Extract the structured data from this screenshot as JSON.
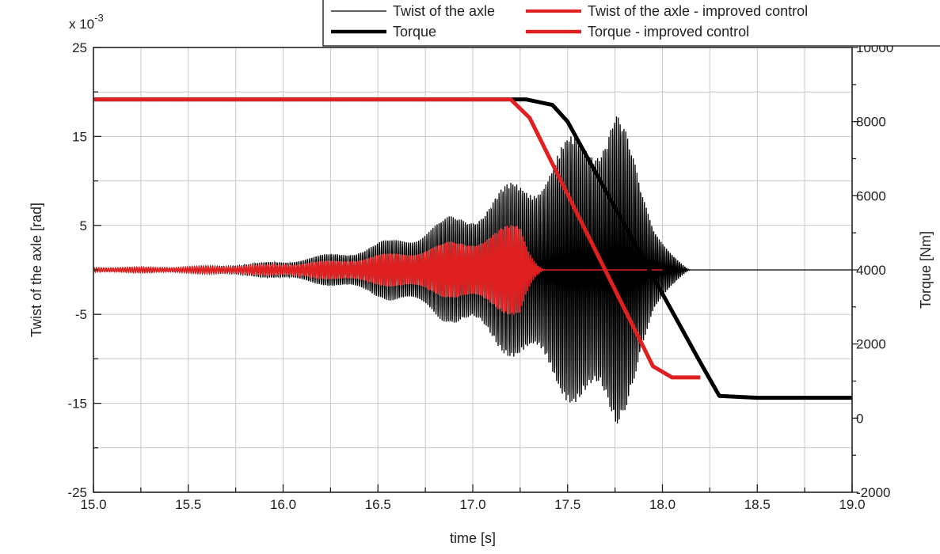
{
  "chart_data": {
    "type": "line",
    "xlabel": "time [s]",
    "ylabel_left": "Twist of the axle [rad]",
    "ylabel_right": "Torque [Nm]",
    "left_axis_multiplier": "x 10",
    "left_axis_exponent": "-3",
    "xlim": [
      15.0,
      19.0
    ],
    "ylim_left": [
      -25,
      25
    ],
    "ylim_right": [
      -2000,
      10000
    ],
    "x_ticks": [
      "15.0",
      "15.5",
      "16.0",
      "16.5",
      "17.0",
      "17.5",
      "18.0",
      "18.5",
      "19.0"
    ],
    "y_left_ticks": [
      "25",
      "15",
      "5",
      "-5",
      "-15",
      "-25"
    ],
    "y_right_ticks": [
      "10000",
      "8000",
      "6000",
      "4000",
      "2000",
      "0",
      "-2000"
    ],
    "grid": true,
    "legend_position": "top-right",
    "series": [
      {
        "name": "Twist of the axle",
        "axis": "left",
        "color": "#000000",
        "style": "thin-oscillating",
        "osc_start": 15.0,
        "osc_peak": 17.75,
        "osc_end": 18.15,
        "peak_amplitude": 20,
        "settle_value": 0,
        "values_described": "oscillation around 0 growing from ~0.3 at 15.0 s to ~20 near 17.75 s, decaying to 0 by ~18.15 s"
      },
      {
        "name": "Twist of the axle - improved control",
        "axis": "left",
        "color": "#e02020",
        "style": "thin-oscillating",
        "osc_start": 15.0,
        "osc_peak": 17.25,
        "osc_end": 17.38,
        "peak_amplitude": 5.5,
        "settle_value": 0,
        "x_end": 18.0,
        "values_described": "oscillation around 0 growing from ~0.3 to ~5.5 near 17.2 s, then flat at 0 until 18.0 s"
      },
      {
        "name": "Torque",
        "axis": "right",
        "color": "#000000",
        "style": "thick",
        "x": [
          15.0,
          17.28,
          17.42,
          17.5,
          18.2,
          18.3,
          18.5,
          19.0
        ],
        "y": [
          8600,
          8600,
          8450,
          8000,
          1500,
          600,
          550,
          550
        ]
      },
      {
        "name": "Torque - improved control",
        "axis": "right",
        "color": "#e02020",
        "style": "thick",
        "x": [
          15.0,
          17.2,
          17.3,
          17.95,
          18.05,
          18.2
        ],
        "y": [
          8600,
          8600,
          8100,
          1400,
          1100,
          1100
        ]
      }
    ]
  }
}
